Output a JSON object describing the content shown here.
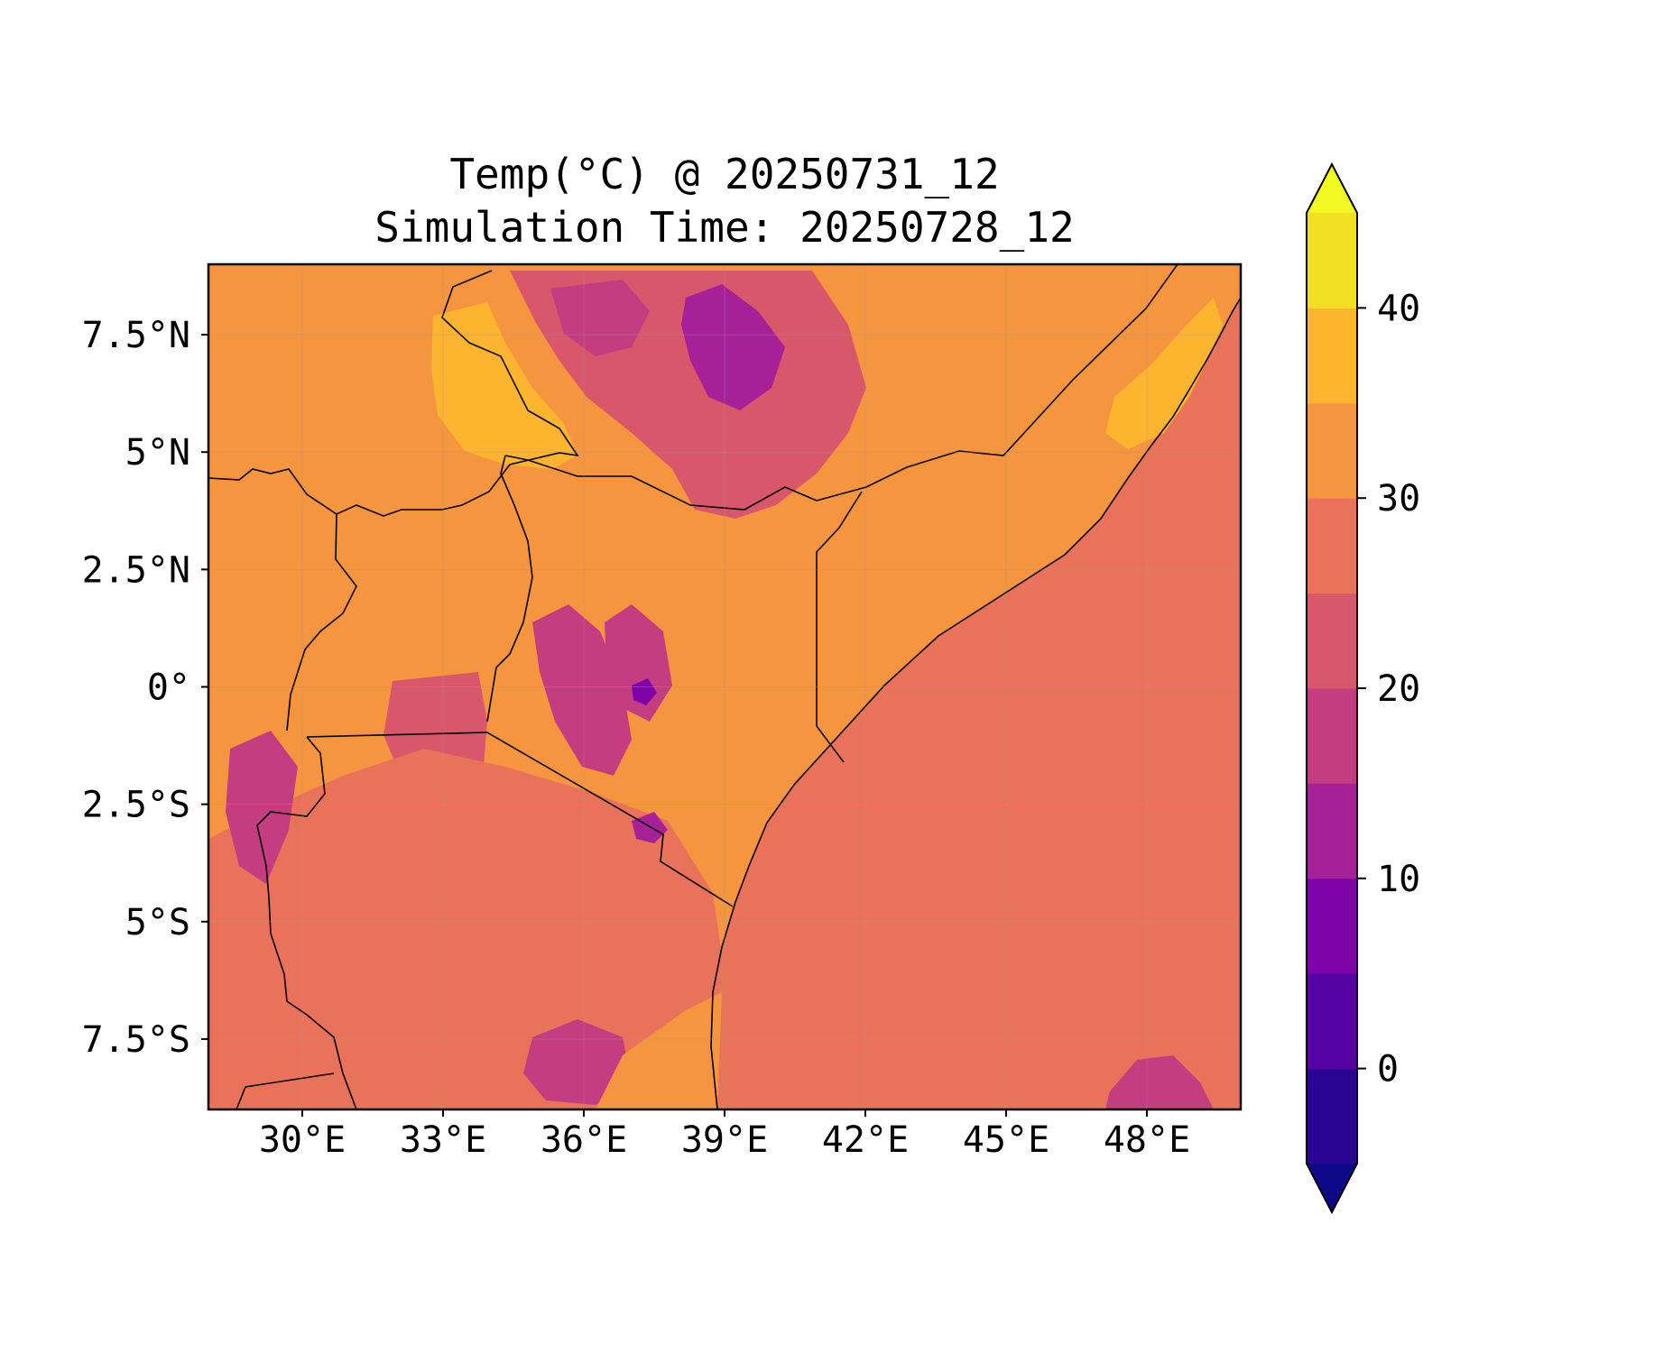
{
  "title": {
    "line1": "Temp(°C) @ 20250731_12",
    "line2": "Simulation Time: 20250728_12"
  },
  "map": {
    "projection": "lat-lon",
    "lon_range": [
      28,
      50
    ],
    "lat_range": [
      -9,
      9
    ],
    "grid": true,
    "x_ticks": [
      {
        "value": 30,
        "label": "30°E"
      },
      {
        "value": 33,
        "label": "33°E"
      },
      {
        "value": 36,
        "label": "36°E"
      },
      {
        "value": 39,
        "label": "39°E"
      },
      {
        "value": 42,
        "label": "42°E"
      },
      {
        "value": 45,
        "label": "45°E"
      },
      {
        "value": 48,
        "label": "48°E"
      }
    ],
    "y_ticks": [
      {
        "value": 7.5,
        "label": "7.5°N"
      },
      {
        "value": 5,
        "label": "5°N"
      },
      {
        "value": 2.5,
        "label": "2.5°N"
      },
      {
        "value": 0,
        "label": "0°"
      },
      {
        "value": -2.5,
        "label": "2.5°S"
      },
      {
        "value": -5,
        "label": "5°S"
      },
      {
        "value": -7.5,
        "label": "7.5°S"
      }
    ],
    "ocean_color": "#e8735a",
    "land_base_color": "#f6953f"
  },
  "colorbar": {
    "levels": [
      -5,
      0,
      5,
      10,
      15,
      20,
      25,
      30,
      35,
      40,
      45
    ],
    "colors": [
      "#2a0593",
      "#5402a3",
      "#7e03a8",
      "#a62098",
      "#c33d80",
      "#d8576b",
      "#e8735a",
      "#f6953f",
      "#fdb42f",
      "#f3e025"
    ],
    "under_color": "#0d0887",
    "over_color": "#f0f921",
    "extend": "both",
    "ticks": [
      {
        "value": 0,
        "label": "0"
      },
      {
        "value": 10,
        "label": "10"
      },
      {
        "value": 20,
        "label": "20"
      },
      {
        "value": 30,
        "label": "30"
      },
      {
        "value": 40,
        "label": "40"
      }
    ]
  }
}
